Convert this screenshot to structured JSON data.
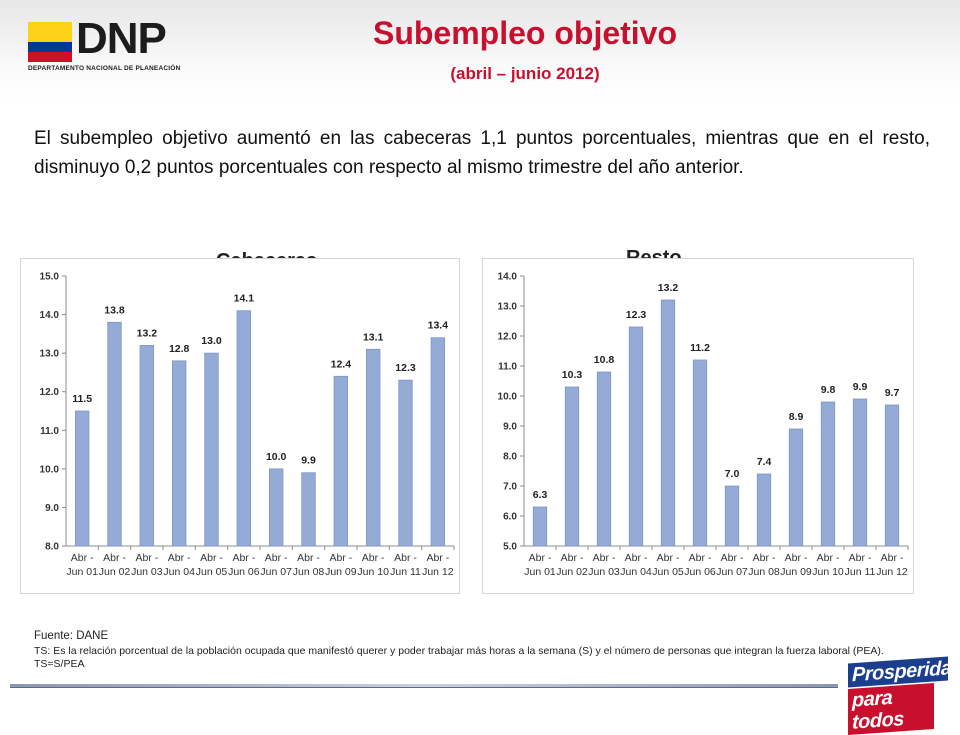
{
  "header": {
    "logo_text": "DNP",
    "logo_subtitle": "DEPARTAMENTO NACIONAL DE PLANEACIÓN",
    "title": "Subempleo objetivo",
    "subtitle": "(abril – junio 2012)"
  },
  "body_text": "El subempleo objetivo aumentó en las cabeceras 1,1 puntos porcentuales, mientras que en el resto, disminuyo 0,2 puntos porcentuales con respecto al mismo trimestre del año anterior.",
  "colors": {
    "title_red": "#c8102e",
    "bar_fill": "#94abd6",
    "bar_stroke": "#7f97c6",
    "flag_yellow": "#fcd116",
    "flag_blue": "#003893",
    "flag_red": "#ce1126"
  },
  "chart_data": [
    {
      "type": "bar",
      "title": "Cabeceras",
      "categories": [
        "Abr - Jun 01",
        "Abr - Jun 02",
        "Abr - Jun 03",
        "Abr - Jun 04",
        "Abr - Jun 05",
        "Abr - Jun 06",
        "Abr - Jun 07",
        "Abr - Jun 08",
        "Abr - Jun 09",
        "Abr - Jun 10",
        "Abr - Jun 11",
        "Abr - Jun 12"
      ],
      "values": [
        11.5,
        13.8,
        13.2,
        12.8,
        13.0,
        14.1,
        10.0,
        9.9,
        12.4,
        13.1,
        12.3,
        13.4
      ],
      "labels": [
        "11.5",
        "13.8",
        "13.2",
        "12.8",
        "13.0",
        "14.1",
        "10.0",
        "9.9",
        "12.4",
        "13.1",
        "12.3",
        "13.4"
      ],
      "ylim": [
        8,
        15
      ],
      "yticks": [
        "8.0",
        "9.0",
        "10.0",
        "11.0",
        "12.0",
        "13.0",
        "14.0",
        "15.0"
      ],
      "grid": false
    },
    {
      "type": "bar",
      "title": "Resto",
      "categories": [
        "Abr - Jun 01",
        "Abr - Jun 02",
        "Abr - Jun 03",
        "Abr - Jun 04",
        "Abr - Jun 05",
        "Abr - Jun 06",
        "Abr - Jun 07",
        "Abr - Jun 08",
        "Abr - Jun 09",
        "Abr - Jun 10",
        "Abr - Jun 11",
        "Abr - Jun 12"
      ],
      "values": [
        6.3,
        10.3,
        10.8,
        12.3,
        13.2,
        11.2,
        7.0,
        7.4,
        8.9,
        9.8,
        9.9,
        9.7
      ],
      "labels": [
        "6.3",
        "10.3",
        "10.8",
        "12.3",
        "13.2",
        "11.2",
        "7.0",
        "7.4",
        "8.9",
        "9.8",
        "9.9",
        "9.7"
      ],
      "ylim": [
        5,
        14
      ],
      "yticks": [
        "5.0",
        "6.0",
        "7.0",
        "8.0",
        "9.0",
        "10.0",
        "11.0",
        "12.0",
        "13.0",
        "14.0"
      ],
      "grid": false
    }
  ],
  "footer": {
    "source": "Fuente: DANE",
    "note": "TS: Es la relación porcentual de la población ocupada que manifestó querer y poder trabajar más horas a la semana (S) y el número de personas que integran la fuerza laboral (PEA). TS=S/PEA"
  },
  "slogan": {
    "line1": "Prosperidad",
    "line2": "para todos"
  }
}
